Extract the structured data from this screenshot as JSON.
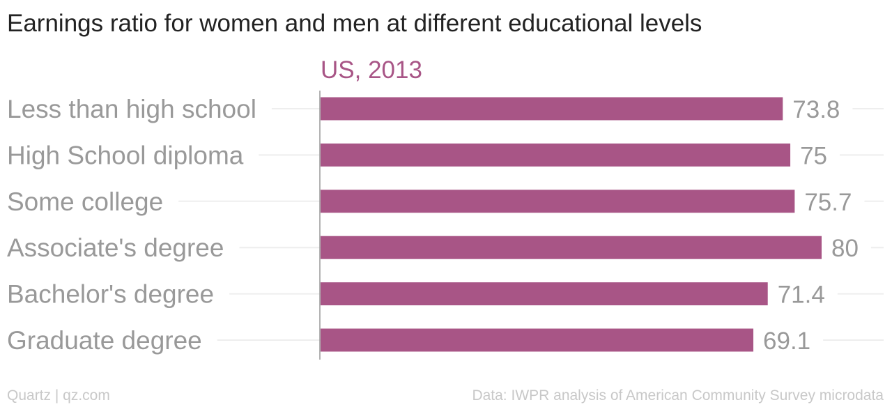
{
  "header": {
    "title": "Earnings ratio for women and men at different educational levels"
  },
  "chart_data": {
    "type": "bar",
    "orientation": "horizontal",
    "series_label": "US, 2013",
    "categories": [
      "Less than high school",
      "High School diploma",
      "Some college",
      "Associate's degree",
      "Bachelor's degree",
      "Graduate degree"
    ],
    "values": [
      73.8,
      75,
      75.7,
      80,
      71.4,
      69.1
    ],
    "value_labels": [
      "73.8",
      "75",
      "75.7",
      "80",
      "71.4",
      "69.1"
    ],
    "xlim": [
      0,
      80
    ],
    "grid": true,
    "data_labels": "end",
    "colors": {
      "bar": "#a85586",
      "series_label": "#a85586",
      "category_text": "#999999",
      "value_text": "#999999",
      "gridline": "#eeeeee",
      "axis": "#999999"
    }
  },
  "footer": {
    "source_left": "Quartz | qz.com",
    "source_right": "Data: IWPR analysis of American Community Survey microdata"
  }
}
